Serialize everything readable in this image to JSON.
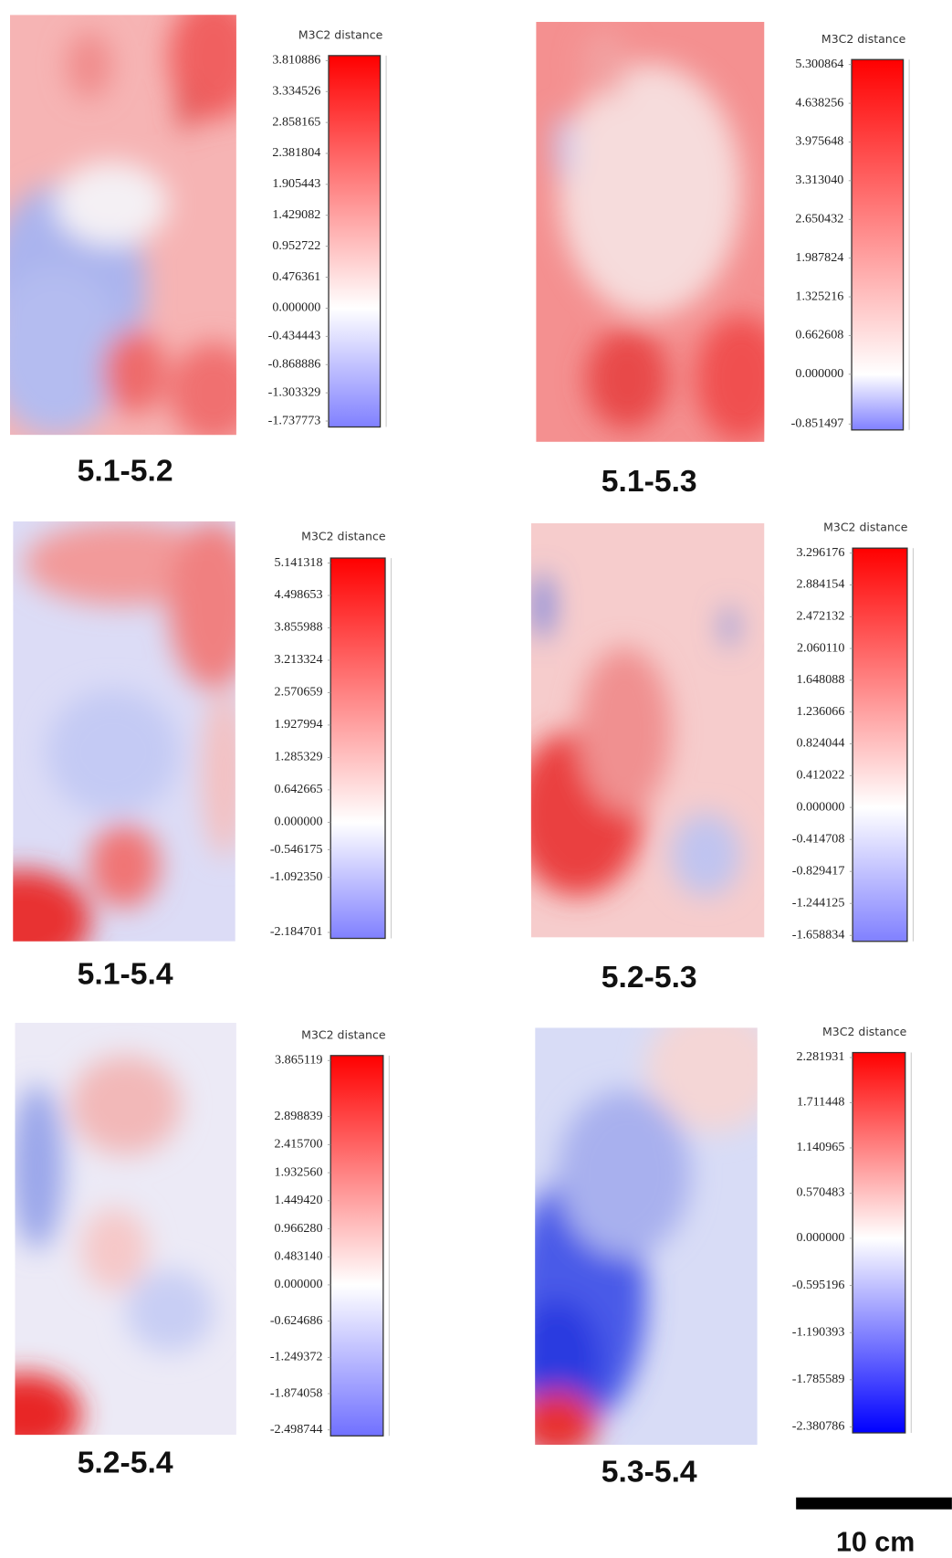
{
  "panels": [
    {
      "label": "5.1-5.2",
      "colorbar": {
        "title": "M3C2 distance",
        "ticks": [
          {
            "value": 3.810886,
            "label": "3.810886"
          },
          {
            "value": 3.334526,
            "label": "3.334526"
          },
          {
            "value": 2.858165,
            "label": "2.858165"
          },
          {
            "value": 2.381804,
            "label": "2.381804"
          },
          {
            "value": 1.905443,
            "label": "1.905443"
          },
          {
            "value": 1.429082,
            "label": "1.429082"
          },
          {
            "value": 0.952722,
            "label": "0.952722"
          },
          {
            "value": 0.476361,
            "label": "0.476361"
          },
          {
            "value": 0,
            "label": "0.000000"
          },
          {
            "value": -0.434443,
            "label": "-0.434443"
          },
          {
            "value": -0.868886,
            "label": "-0.868886"
          },
          {
            "value": -1.303329,
            "label": "-1.303329"
          },
          {
            "value": -1.737773,
            "label": "-1.737773"
          }
        ]
      }
    },
    {
      "label": "5.1-5.3",
      "colorbar": {
        "title": "M3C2 distance",
        "ticks": [
          {
            "value": 5.300864,
            "label": "5.300864"
          },
          {
            "value": 4.638256,
            "label": "4.638256"
          },
          {
            "value": 3.975648,
            "label": "3.975648"
          },
          {
            "value": 3.31304,
            "label": "3.313040"
          },
          {
            "value": 2.650432,
            "label": "2.650432"
          },
          {
            "value": 1.987824,
            "label": "1.987824"
          },
          {
            "value": 1.325216,
            "label": "1.325216"
          },
          {
            "value": 0.662608,
            "label": "0.662608"
          },
          {
            "value": 0,
            "label": "0.000000"
          },
          {
            "value": -0.851497,
            "label": "-0.851497"
          }
        ]
      }
    },
    {
      "label": "5.1-5.4",
      "colorbar": {
        "title": "M3C2 distance",
        "ticks": [
          {
            "value": 5.141318,
            "label": "5.141318"
          },
          {
            "value": 4.498653,
            "label": "4.498653"
          },
          {
            "value": 3.855988,
            "label": "3.855988"
          },
          {
            "value": 3.213324,
            "label": "3.213324"
          },
          {
            "value": 2.570659,
            "label": "2.570659"
          },
          {
            "value": 1.927994,
            "label": "1.927994"
          },
          {
            "value": 1.285329,
            "label": "1.285329"
          },
          {
            "value": 0.642665,
            "label": "0.642665"
          },
          {
            "value": 0,
            "label": "0.000000"
          },
          {
            "value": -0.546175,
            "label": "-0.546175"
          },
          {
            "value": -1.09235,
            "label": "-1.092350"
          },
          {
            "value": -2.184701,
            "label": "-2.184701"
          }
        ]
      }
    },
    {
      "label": "5.2-5.3",
      "colorbar": {
        "title": "M3C2 distance",
        "ticks": [
          {
            "value": 3.296176,
            "label": "3.296176"
          },
          {
            "value": 2.884154,
            "label": "2.884154"
          },
          {
            "value": 2.472132,
            "label": "2.472132"
          },
          {
            "value": 2.06011,
            "label": "2.060110"
          },
          {
            "value": 1.648088,
            "label": "1.648088"
          },
          {
            "value": 1.236066,
            "label": "1.236066"
          },
          {
            "value": 0.824044,
            "label": "0.824044"
          },
          {
            "value": 0.412022,
            "label": "0.412022"
          },
          {
            "value": 0,
            "label": "0.000000"
          },
          {
            "value": -0.414708,
            "label": "-0.414708"
          },
          {
            "value": -0.829417,
            "label": "-0.829417"
          },
          {
            "value": -1.244125,
            "label": "-1.244125"
          },
          {
            "value": -1.658834,
            "label": "-1.658834"
          }
        ]
      }
    },
    {
      "label": "5.2-5.4",
      "colorbar": {
        "title": "M3C2 distance",
        "ticks": [
          {
            "value": 3.865119,
            "label": "3.865119"
          },
          {
            "value": 2.898839,
            "label": "2.898839"
          },
          {
            "value": 2.4157,
            "label": "2.415700"
          },
          {
            "value": 1.93256,
            "label": "1.932560"
          },
          {
            "value": 1.44942,
            "label": "1.449420"
          },
          {
            "value": 0.96628,
            "label": "0.966280"
          },
          {
            "value": 0.48314,
            "label": "0.483140"
          },
          {
            "value": 0,
            "label": "0.000000"
          },
          {
            "value": -0.624686,
            "label": "-0.624686"
          },
          {
            "value": -1.249372,
            "label": "-1.249372"
          },
          {
            "value": -1.874058,
            "label": "-1.874058"
          },
          {
            "value": -2.498744,
            "label": "-2.498744"
          }
        ]
      }
    },
    {
      "label": "5.3-5.4",
      "colorbar": {
        "title": "M3C2 distance",
        "ticks": [
          {
            "value": 2.281931,
            "label": "2.281931"
          },
          {
            "value": 1.711448,
            "label": "1.711448"
          },
          {
            "value": 1.140965,
            "label": "1.140965"
          },
          {
            "value": 0.570483,
            "label": "0.570483"
          },
          {
            "value": 0,
            "label": "0.000000"
          },
          {
            "value": -0.595196,
            "label": "-0.595196"
          },
          {
            "value": -1.190393,
            "label": "-1.190393"
          },
          {
            "value": -1.785589,
            "label": "-1.785589"
          },
          {
            "value": -2.380786,
            "label": "-2.380786"
          }
        ]
      }
    }
  ],
  "scale_bar": {
    "label": "10 cm"
  }
}
